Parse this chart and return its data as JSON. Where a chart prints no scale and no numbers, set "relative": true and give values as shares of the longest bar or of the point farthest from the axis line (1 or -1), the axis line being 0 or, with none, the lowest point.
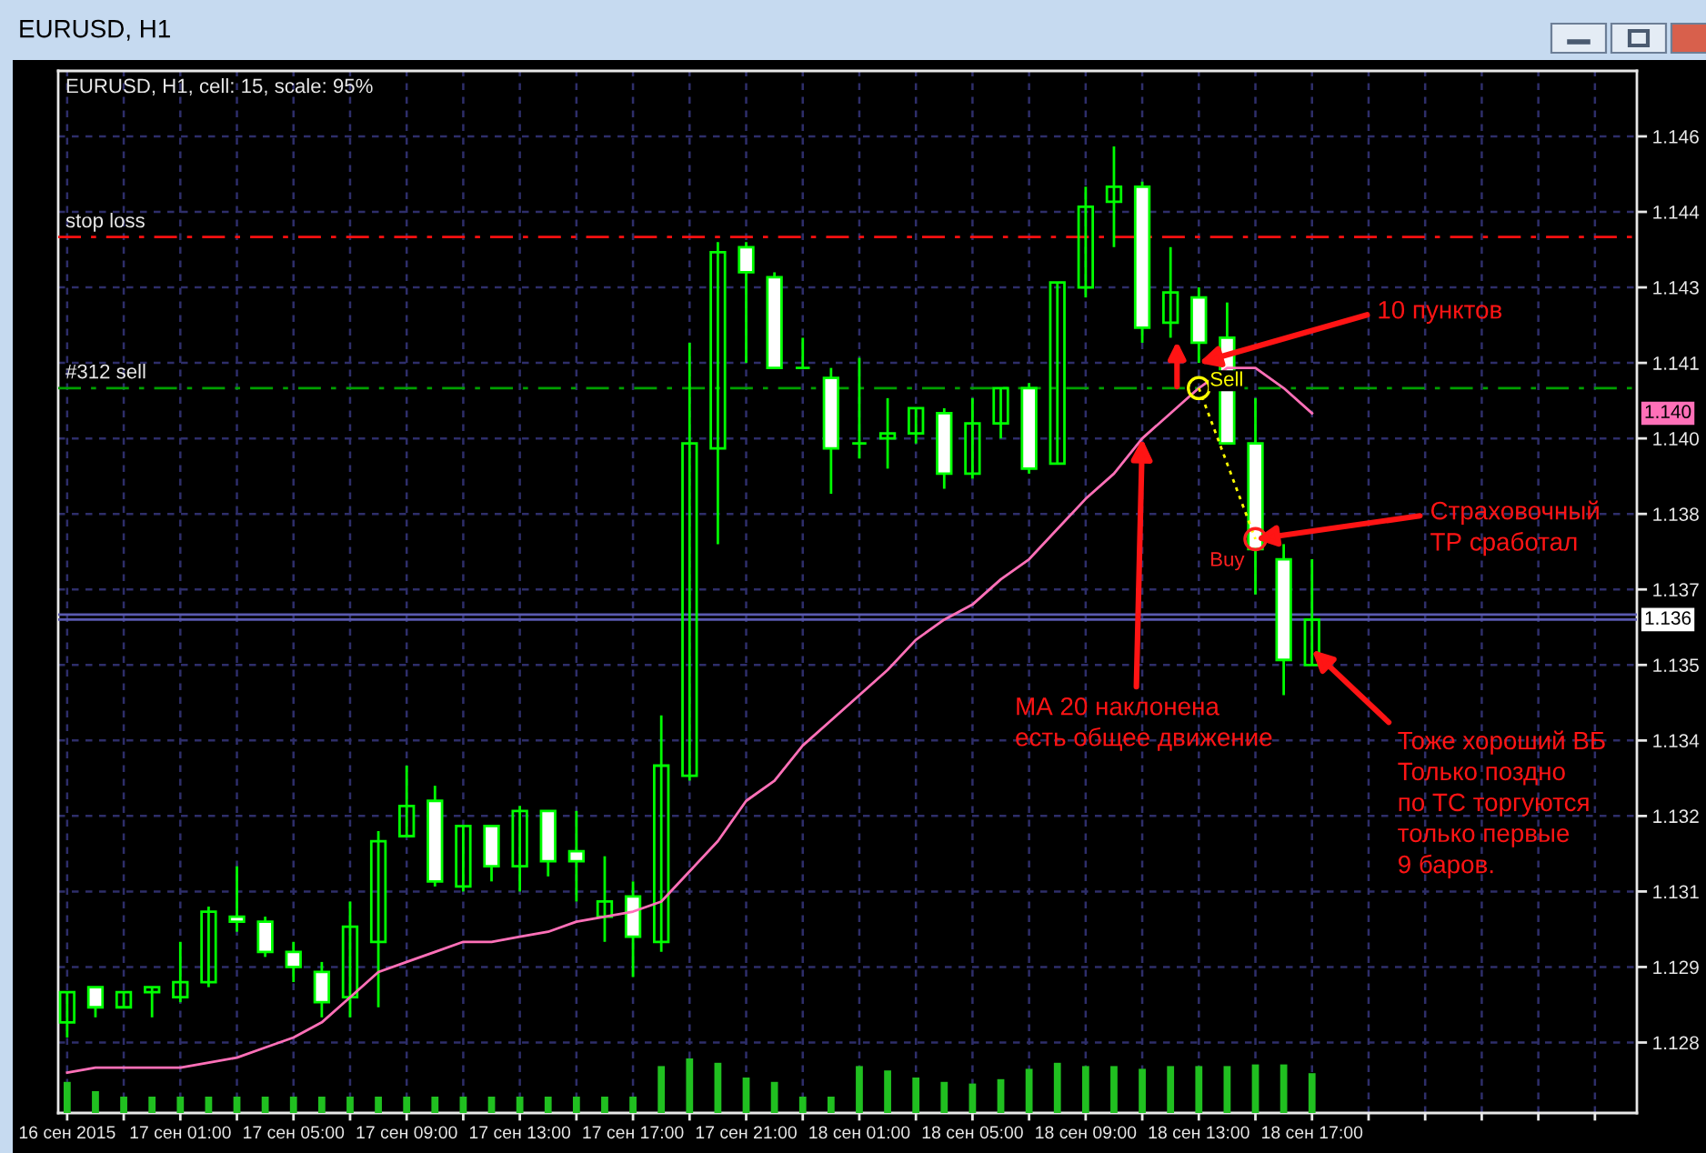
{
  "chart_data": [
    {
      "type": "candlestick",
      "title": "EURUSD, H1",
      "subtitle": "EURUSD, H1, cell: 15, scale: 95%",
      "x": [
        "2015-09-16T21:00",
        "2015-09-16T22:00",
        "2015-09-16T23:00",
        "2015-09-17T00:00",
        "2015-09-17T01:00",
        "2015-09-17T02:00",
        "2015-09-17T03:00",
        "2015-09-17T04:00",
        "2015-09-17T05:00",
        "2015-09-17T06:00",
        "2015-09-17T07:00",
        "2015-09-17T08:00",
        "2015-09-17T09:00",
        "2015-09-17T10:00",
        "2015-09-17T11:00",
        "2015-09-17T12:00",
        "2015-09-17T13:00",
        "2015-09-17T14:00",
        "2015-09-17T15:00",
        "2015-09-17T16:00",
        "2015-09-17T17:00",
        "2015-09-17T18:00",
        "2015-09-17T19:00",
        "2015-09-17T20:00",
        "2015-09-17T21:00",
        "2015-09-17T22:00",
        "2015-09-17T23:00",
        "2015-09-18T00:00",
        "2015-09-18T01:00",
        "2015-09-18T02:00",
        "2015-09-18T03:00",
        "2015-09-18T04:00",
        "2015-09-18T05:00",
        "2015-09-18T06:00",
        "2015-09-18T07:00",
        "2015-09-18T08:00",
        "2015-09-18T09:00",
        "2015-09-18T10:00",
        "2015-09-18T11:00",
        "2015-09-18T12:00",
        "2015-09-18T13:00",
        "2015-09-18T14:00",
        "2015-09-18T15:00",
        "2015-09-18T16:00",
        "2015-09-18T17:00"
      ],
      "ohlc": [
        [
          1.1284,
          1.129,
          1.1281,
          1.129
        ],
        [
          1.1291,
          1.1291,
          1.1285,
          1.1287
        ],
        [
          1.1287,
          1.129,
          1.1287,
          1.129
        ],
        [
          1.129,
          1.1291,
          1.1285,
          1.1291
        ],
        [
          1.1289,
          1.13,
          1.1288,
          1.1292
        ],
        [
          1.1292,
          1.1307,
          1.1291,
          1.1306
        ],
        [
          1.1305,
          1.1315,
          1.1302,
          1.1304
        ],
        [
          1.1304,
          1.1305,
          1.1297,
          1.1298
        ],
        [
          1.1298,
          1.13,
          1.1292,
          1.1295
        ],
        [
          1.1294,
          1.1296,
          1.1285,
          1.1288
        ],
        [
          1.1289,
          1.1308,
          1.1285,
          1.1303
        ],
        [
          1.13,
          1.1322,
          1.1287,
          1.132
        ],
        [
          1.1321,
          1.1335,
          1.1321,
          1.1327
        ],
        [
          1.1328,
          1.1331,
          1.1311,
          1.1312
        ],
        [
          1.1311,
          1.1323,
          1.131,
          1.1323
        ],
        [
          1.1323,
          1.1323,
          1.1312,
          1.1315
        ],
        [
          1.1315,
          1.1327,
          1.131,
          1.1326
        ],
        [
          1.1326,
          1.1326,
          1.1313,
          1.1316
        ],
        [
          1.1318,
          1.1326,
          1.1308,
          1.1316
        ],
        [
          1.1305,
          1.1317,
          1.13,
          1.1308
        ],
        [
          1.1309,
          1.1312,
          1.1293,
          1.1301
        ],
        [
          1.13,
          1.1345,
          1.1298,
          1.1335
        ],
        [
          1.1333,
          1.1419,
          1.1332,
          1.1399
        ],
        [
          1.1398,
          1.1439,
          1.1379,
          1.1437
        ],
        [
          1.1438,
          1.1439,
          1.1415,
          1.1433
        ],
        [
          1.1432,
          1.1433,
          1.1414,
          1.1414
        ],
        [
          1.1414,
          1.142,
          1.1414,
          1.1414
        ],
        [
          1.1412,
          1.1414,
          1.1389,
          1.1398
        ],
        [
          1.1399,
          1.1416,
          1.1396,
          1.1399
        ],
        [
          1.14,
          1.1408,
          1.1394,
          1.1401
        ],
        [
          1.1401,
          1.1406,
          1.1399,
          1.1406
        ],
        [
          1.1405,
          1.1406,
          1.139,
          1.1393
        ],
        [
          1.1393,
          1.1408,
          1.1392,
          1.1403
        ],
        [
          1.1403,
          1.141,
          1.14,
          1.141
        ],
        [
          1.141,
          1.1411,
          1.1393,
          1.1394
        ],
        [
          1.1395,
          1.1431,
          1.1395,
          1.1431
        ],
        [
          1.143,
          1.145,
          1.1428,
          1.1446
        ],
        [
          1.1447,
          1.1458,
          1.1438,
          1.145
        ],
        [
          1.145,
          1.1451,
          1.1419,
          1.1422
        ],
        [
          1.1423,
          1.1438,
          1.142,
          1.1429
        ],
        [
          1.1428,
          1.143,
          1.1415,
          1.1419
        ],
        [
          1.142,
          1.1427,
          1.1399,
          1.1399
        ],
        [
          1.1399,
          1.1408,
          1.1369,
          1.1378
        ],
        [
          1.1376,
          1.1379,
          1.1349,
          1.1356
        ],
        [
          1.1355,
          1.1376,
          1.1355,
          1.1364
        ]
      ],
      "color": "#00ff00",
      "colors": [
        "#00ff00",
        "#ffffff",
        "#00ff00",
        "#00ff00",
        "#00ff00",
        "#00ff00",
        "#ffffff",
        "#ffffff",
        "#ffffff",
        "#ffffff",
        "#00ff00",
        "#00ff00",
        "#00ff00",
        "#ffffff",
        "#00ff00",
        "#ffffff",
        "#00ff00",
        "#ffffff",
        "#ffffff",
        "#00ff00",
        "#ffffff",
        "#00ff00",
        "#00ff00",
        "#00ff00",
        "#ffffff",
        "#ffffff",
        "#00ff00",
        "#ffffff",
        "#00ff00",
        "#00ff00",
        "#00ff00",
        "#ffffff",
        "#00ff00",
        "#00ff00",
        "#ffffff",
        "#00ff00",
        "#00ff00",
        "#00ff00",
        "#ffffff",
        "#00ff00",
        "#ffffff",
        "#ffffff",
        "#ffffff",
        "#ffffff",
        "#00ff00"
      ],
      "series": [
        {
          "type": "line",
          "color": "#ff70b8",
          "values": [
            1.1274,
            1.1275,
            1.1275,
            1.1275,
            1.1275,
            1.1276,
            1.1277,
            1.1279,
            1.1281,
            1.1284,
            1.1289,
            1.1294,
            1.1296,
            1.1298,
            1.13,
            1.13,
            1.1301,
            1.1302,
            1.1304,
            1.1305,
            1.1306,
            1.1308,
            1.1314,
            1.132,
            1.1328,
            1.1332,
            1.1339,
            1.1344,
            1.1349,
            1.1354,
            1.136,
            1.1364,
            1.1367,
            1.1372,
            1.1376,
            1.1382,
            1.1388,
            1.1393,
            1.14,
            1.1405,
            1.141,
            1.1414,
            1.1414,
            1.141,
            1.1405
          ]
        },
        {
          "type": "line",
          "x": [
            "2015-09-18T13:00",
            "2015-09-18T15:00"
          ],
          "values": [
            1.141,
            1.138
          ],
          "color": "#ffff00",
          "colors": [
            "#ffff00",
            "#ff2020"
          ],
          "marker": "circle",
          "line_style": "dotted"
        }
      ],
      "xlim": [
        "2015-09-16T20:41",
        "2015-09-19T04:29"
      ],
      "ylim": [
        1.1266,
        1.1473
      ],
      "xticks": [
        {
          "value": "2015-09-16T21:00",
          "label": "16 сен 2015"
        },
        {
          "value": "2015-09-16T23:00",
          "label": null
        },
        {
          "value": "2015-09-17T01:00",
          "label": "17 сен 01:00"
        },
        {
          "value": "2015-09-17T03:00",
          "label": null
        },
        {
          "value": "2015-09-17T05:00",
          "label": "17 сен 05:00"
        },
        {
          "value": "2015-09-17T07:00",
          "label": null
        },
        {
          "value": "2015-09-17T09:00",
          "label": "17 сен 09:00"
        },
        {
          "value": "2015-09-17T11:00",
          "label": null
        },
        {
          "value": "2015-09-17T13:00",
          "label": "17 сен 13:00"
        },
        {
          "value": "2015-09-17T15:00",
          "label": null
        },
        {
          "value": "2015-09-17T17:00",
          "label": "17 сен 17:00"
        },
        {
          "value": "2015-09-17T19:00",
          "label": null
        },
        {
          "value": "2015-09-17T21:00",
          "label": "17 сен 21:00"
        },
        {
          "value": "2015-09-17T23:00",
          "label": null
        },
        {
          "value": "2015-09-18T01:00",
          "label": "18 сен 01:00"
        },
        {
          "value": "2015-09-18T03:00",
          "label": null
        },
        {
          "value": "2015-09-18T05:00",
          "label": "18 сен 05:00"
        },
        {
          "value": "2015-09-18T07:00",
          "label": null
        },
        {
          "value": "2015-09-18T09:00",
          "label": "18 сен 09:00"
        },
        {
          "value": "2015-09-18T11:00",
          "label": null
        },
        {
          "value": "2015-09-18T13:00",
          "label": "18 сен 13:00"
        },
        {
          "value": "2015-09-18T15:00",
          "label": null
        },
        {
          "value": "2015-09-18T17:00",
          "label": "18 сен 17:00"
        },
        {
          "value": "2015-09-18T19:00",
          "label": null
        },
        {
          "value": "2015-09-18T21:00",
          "label": null
        },
        {
          "value": "2015-09-18T23:00",
          "label": null
        },
        {
          "value": "2015-09-19T01:00",
          "label": null
        },
        {
          "value": "2015-09-19T03:00",
          "label": null
        }
      ],
      "yticks": [
        1.146,
        {
          "value": 1.1445,
          "label": "1.144"
        },
        1.143,
        {
          "value": 1.1415,
          "label": "1.141"
        },
        {
          "value": 1.14,
          "label": "1.140"
        },
        {
          "value": 1.1385,
          "label": "1.138"
        },
        1.137,
        {
          "value": 1.1355,
          "label": "1.135"
        },
        1.134,
        {
          "value": 1.1325,
          "label": "1.132"
        },
        1.131,
        {
          "value": 1.1295,
          "label": "1.129"
        },
        1.128
      ],
      "grid": true,
      "ref_lines": [
        {
          "axis": "y",
          "value": 1.144,
          "label": "stop loss",
          "color": "#ff1010",
          "line_style": "dashed"
        },
        {
          "axis": "y",
          "value": 1.141,
          "label": "#312 sell",
          "color": "#00a000",
          "line_style": "dashed"
        },
        {
          "axis": "y",
          "value": 1.1365,
          "color": "#5a5ab0",
          "line_style": "solid"
        },
        {
          "axis": "y",
          "value": 1.1364,
          "label": "1.136",
          "color": "#5a5ab0",
          "line_style": "solid"
        }
      ],
      "annotations": [
        {
          "text": "Sell",
          "x": "2015-09-18T13:00",
          "y": 1.141
        },
        {
          "text": "Buy",
          "x": "2015-09-18T15:00",
          "y": 1.138
        },
        {
          "text": "10 пунктов",
          "x": "2015-09-18T13:00",
          "y": 1.1415
        },
        {
          "text": "Страховочный\nТР сработал",
          "x": "2015-09-18T15:00",
          "y": 1.138
        },
        {
          "text": "МА 20 наклонена\nесть общее движение",
          "x": "2015-09-18T11:00",
          "y": 1.14
        },
        {
          "text": "Тоже хороший ВБ\nТолько поздно\nпо ТС торгуются\nтолько первые\n9 баров.",
          "x": "2015-09-18T17:00",
          "y": 1.1358
        },
        "1.140"
      ]
    },
    {
      "type": "bar",
      "relative": true,
      "color": "#20c020",
      "x": [
        "2015-09-16T21:00",
        "2015-09-16T22:00",
        "2015-09-16T23:00",
        "2015-09-17T00:00",
        "2015-09-17T01:00",
        "2015-09-17T02:00",
        "2015-09-17T03:00",
        "2015-09-17T04:00",
        "2015-09-17T05:00",
        "2015-09-17T06:00",
        "2015-09-17T07:00",
        "2015-09-17T08:00",
        "2015-09-17T09:00",
        "2015-09-17T10:00",
        "2015-09-17T11:00",
        "2015-09-17T12:00",
        "2015-09-17T13:00",
        "2015-09-17T14:00",
        "2015-09-17T15:00",
        "2015-09-17T16:00",
        "2015-09-17T17:00",
        "2015-09-17T18:00",
        "2015-09-17T19:00",
        "2015-09-17T20:00",
        "2015-09-17T21:00",
        "2015-09-17T22:00",
        "2015-09-17T23:00",
        "2015-09-18T00:00",
        "2015-09-18T01:00",
        "2015-09-18T02:00",
        "2015-09-18T03:00",
        "2015-09-18T04:00",
        "2015-09-18T05:00",
        "2015-09-18T06:00",
        "2015-09-18T07:00",
        "2015-09-18T08:00",
        "2015-09-18T09:00",
        "2015-09-18T10:00",
        "2015-09-18T11:00",
        "2015-09-18T12:00",
        "2015-09-18T13:00",
        "2015-09-18T14:00",
        "2015-09-18T15:00",
        "2015-09-18T16:00",
        "2015-09-18T17:00"
      ],
      "values": [
        0.57,
        0.4,
        0.3,
        0.3,
        0.3,
        0.3,
        0.3,
        0.3,
        0.3,
        0.3,
        0.3,
        0.3,
        0.3,
        0.3,
        0.3,
        0.3,
        0.3,
        0.3,
        0.3,
        0.3,
        0.3,
        0.86,
        1,
        0.92,
        0.65,
        0.57,
        0.3,
        0.3,
        0.86,
        0.78,
        0.65,
        0.57,
        0.54,
        0.62,
        0.81,
        0.92,
        0.86,
        0.86,
        0.81,
        0.86,
        0.86,
        0.86,
        0.89,
        0.89,
        0.73
      ],
      "xlim": [
        "2015-09-16T20:41",
        "2015-09-19T04:29"
      ]
    }
  ]
}
